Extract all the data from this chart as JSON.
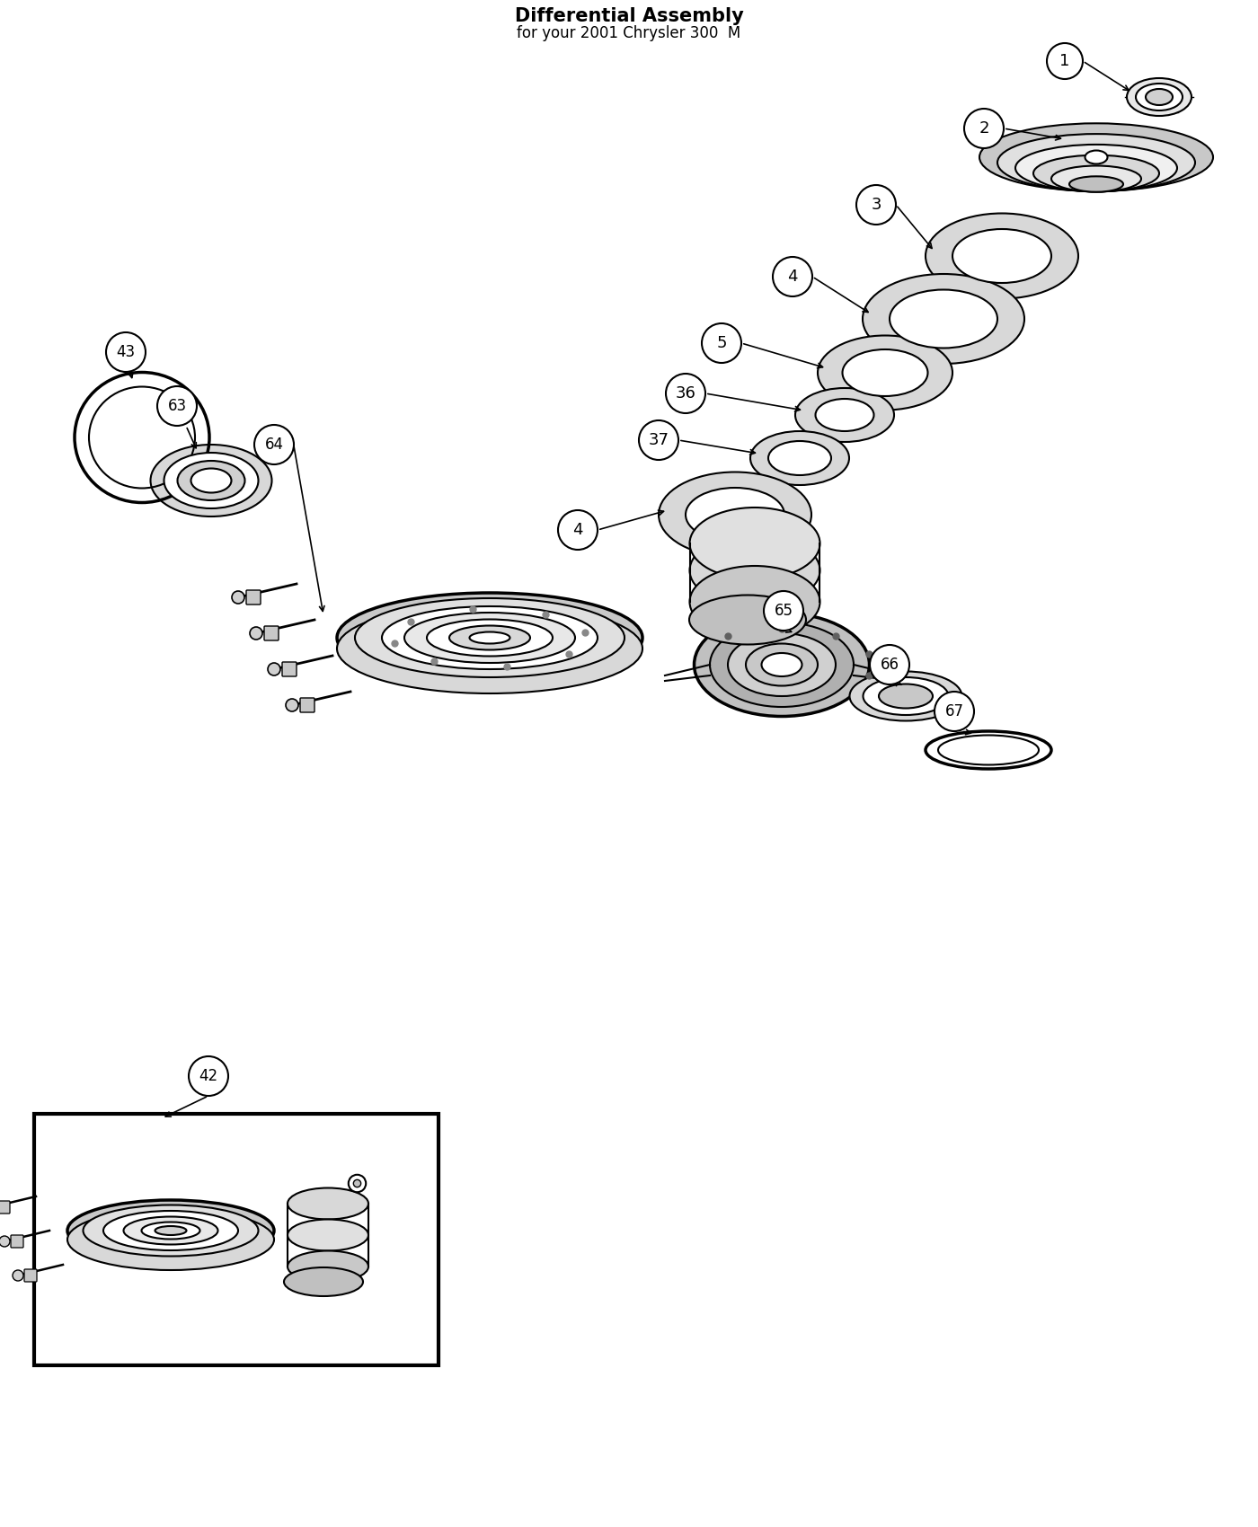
{
  "title": "Differential Assembly",
  "subtitle": "for your 2001 Chrysler 300  M",
  "background_color": "#ffffff",
  "line_color": "#000000",
  "label_font_size": 13,
  "title_font_size": 15
}
